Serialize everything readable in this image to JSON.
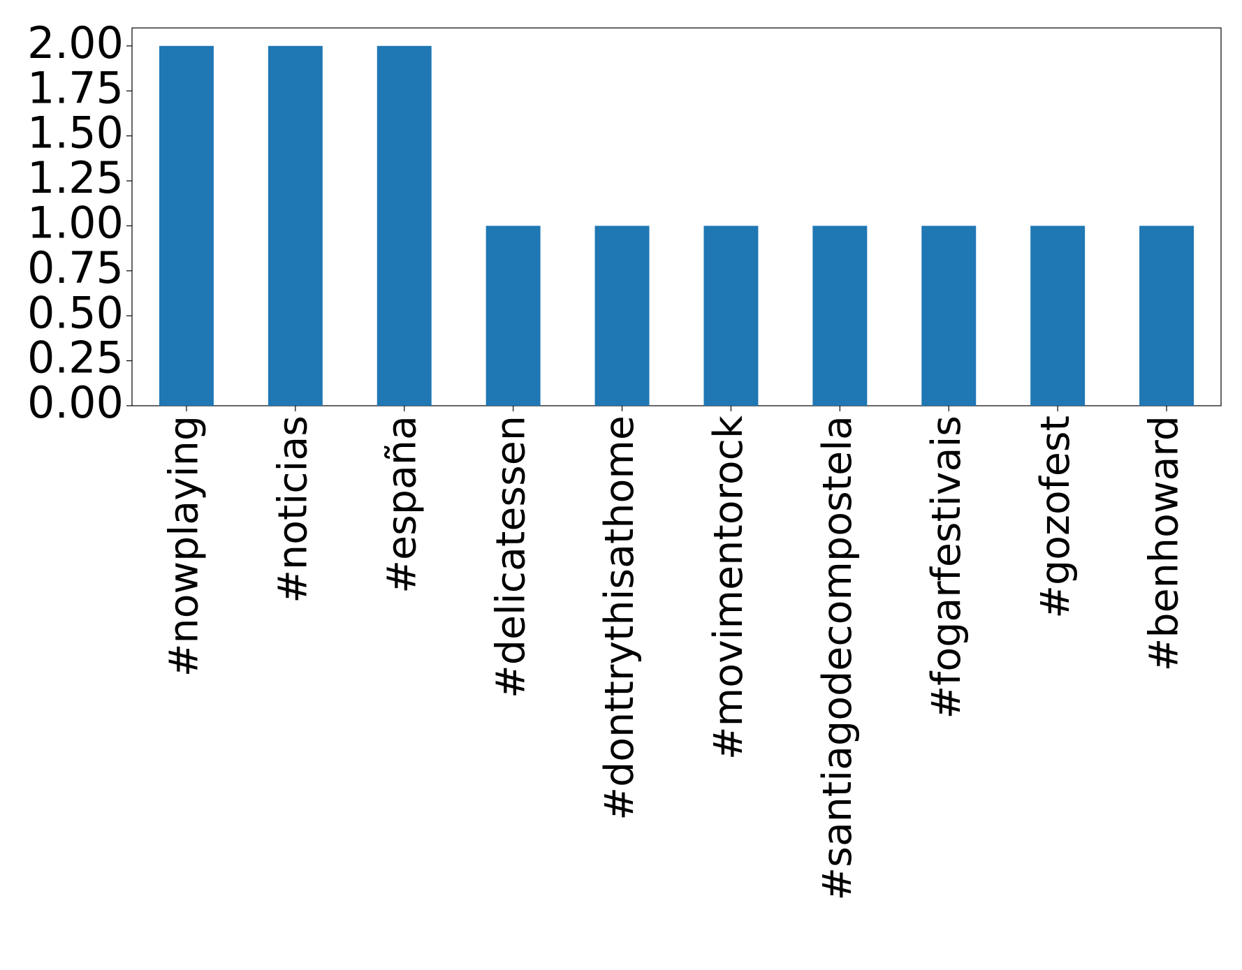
{
  "chart_data": {
    "type": "bar",
    "categories": [
      "#nowplaying",
      "#noticias",
      "#españa",
      "#delicatessen",
      "#donttrythisathome",
      "#movimentorock",
      "#santiagodecompostela",
      "#fogarfestivais",
      "#gozofest",
      "#benhoward"
    ],
    "values": [
      2,
      2,
      2,
      1,
      1,
      1,
      1,
      1,
      1,
      1
    ],
    "color": "#1f77b4",
    "ylim": [
      0,
      2.1
    ],
    "yticks": [
      {
        "value": 0,
        "label": "0.00"
      },
      {
        "value": 0.25,
        "label": "0.25"
      },
      {
        "value": 0.5,
        "label": "0.50"
      },
      {
        "value": 0.75,
        "label": "0.75"
      },
      {
        "value": 1,
        "label": "1.00"
      },
      {
        "value": 1.25,
        "label": "1.25"
      },
      {
        "value": 1.5,
        "label": "1.50"
      },
      {
        "value": 1.75,
        "label": "1.75"
      },
      {
        "value": 2,
        "label": "2.00"
      }
    ],
    "grid": false
  }
}
